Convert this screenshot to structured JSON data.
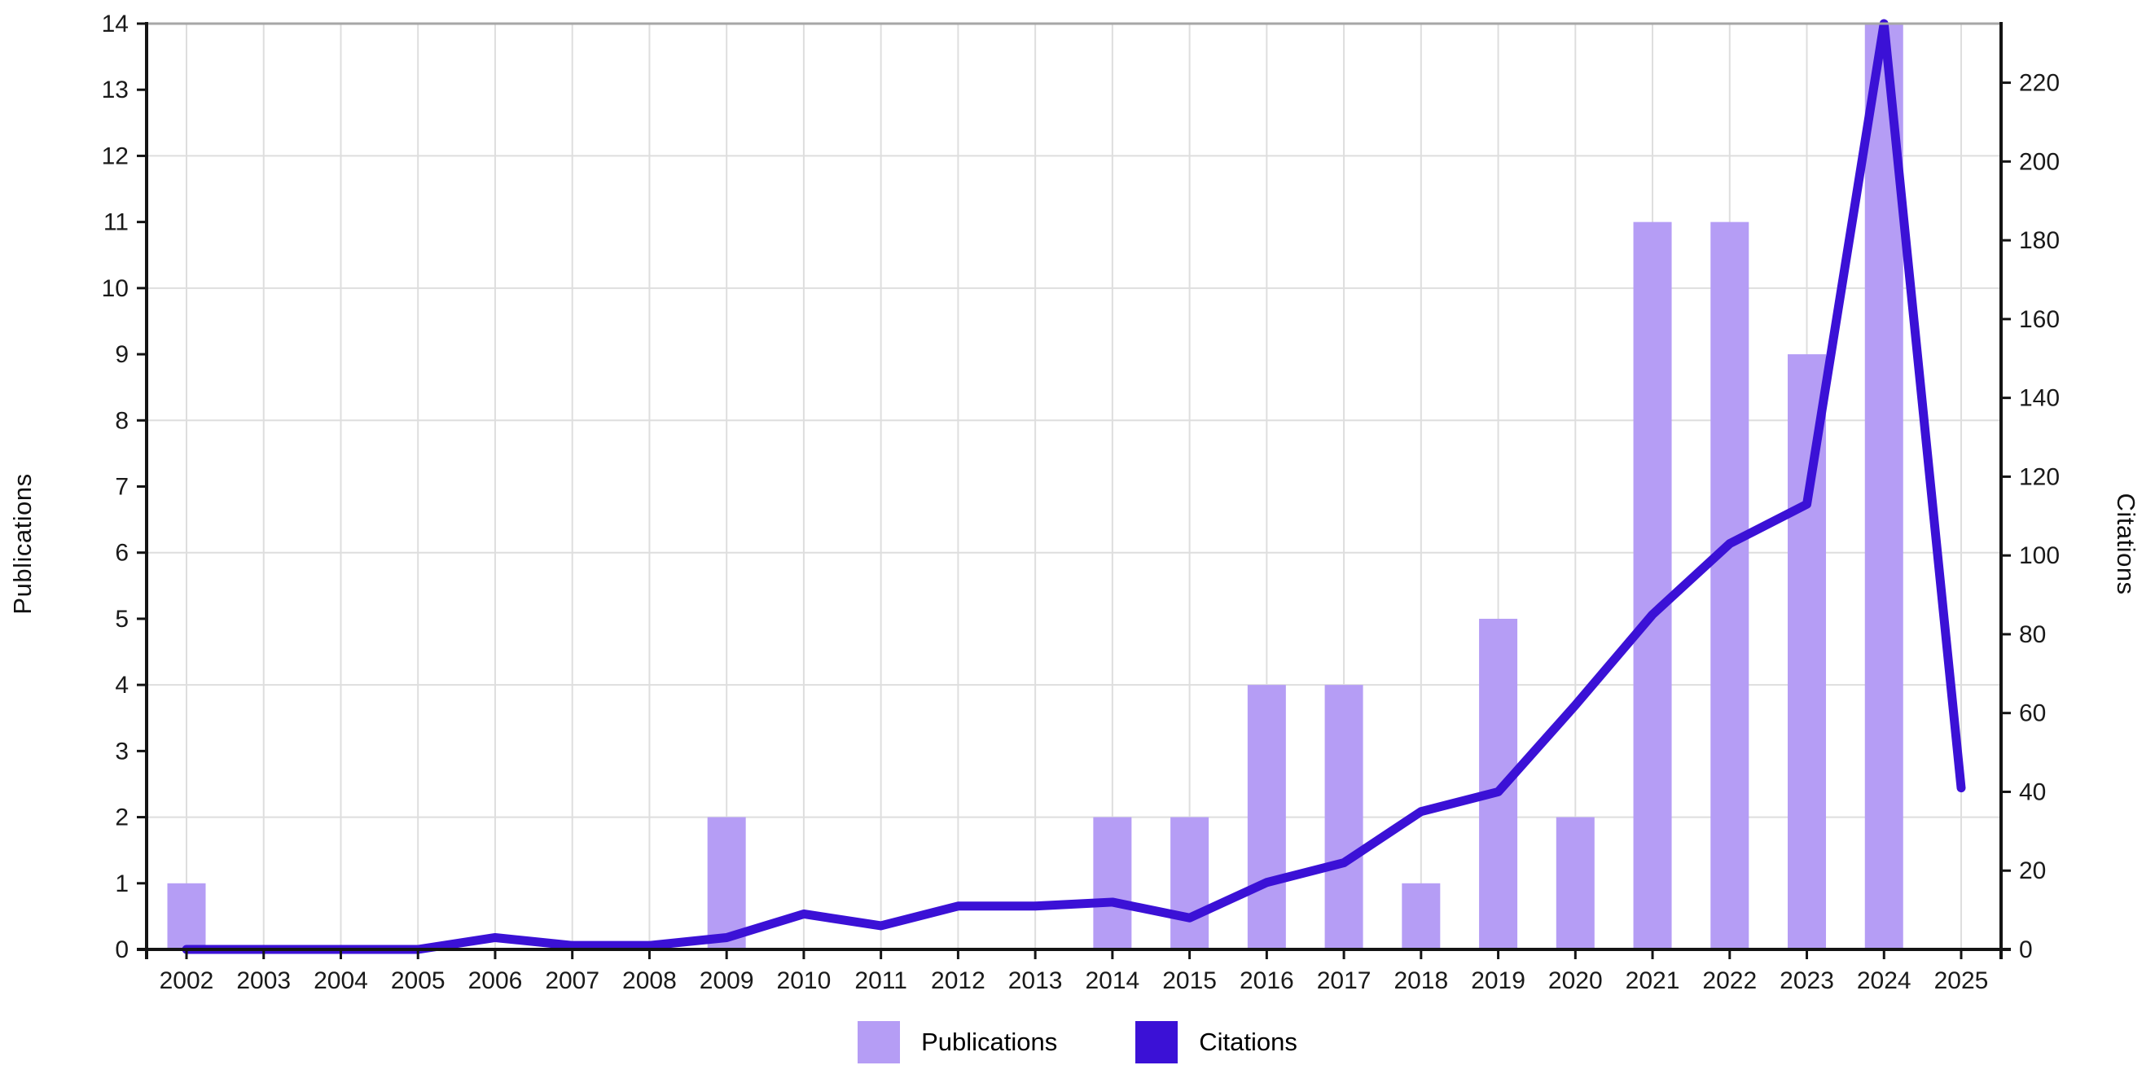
{
  "chart_data": {
    "type": "combo",
    "title": "",
    "categories": [
      2002,
      2003,
      2004,
      2005,
      2006,
      2007,
      2008,
      2009,
      2010,
      2011,
      2012,
      2013,
      2014,
      2015,
      2016,
      2017,
      2018,
      2019,
      2020,
      2021,
      2022,
      2023,
      2024,
      2025
    ],
    "series": [
      {
        "name": "Publications",
        "type": "bar",
        "axis": "left",
        "color": "#b59df5",
        "values": [
          1,
          0,
          0,
          0,
          0,
          0,
          0,
          2,
          0,
          0,
          0,
          0,
          2,
          2,
          4,
          4,
          1,
          5,
          2,
          11,
          11,
          9,
          14,
          0
        ]
      },
      {
        "name": "Citations",
        "type": "line",
        "axis": "right",
        "color": "#3b11d6",
        "values": [
          0,
          0,
          0,
          0,
          3,
          1,
          1,
          3,
          9,
          6,
          11,
          11,
          12,
          8,
          17,
          22,
          35,
          40,
          62,
          85,
          103,
          113,
          235,
          41
        ]
      }
    ],
    "left_axis": {
      "label": "Publications",
      "min": 0,
      "max": 14,
      "ticks": [
        0,
        1,
        2,
        3,
        4,
        5,
        6,
        7,
        8,
        9,
        10,
        11,
        12,
        13,
        14
      ]
    },
    "right_axis": {
      "label": "Citations",
      "min": 0,
      "max": 235,
      "ticks": [
        0,
        20,
        40,
        60,
        80,
        100,
        120,
        140,
        160,
        180,
        200,
        220
      ]
    },
    "grid": {
      "horizontal_at": [
        2,
        4,
        6,
        8,
        10,
        12
      ],
      "vertical_every_category": true
    },
    "legend_position": "bottom"
  },
  "colors": {
    "background": "#ffffff",
    "grid": "#dedede",
    "axis": "#141414",
    "top_border": "#a6a6a6",
    "tick_label": "#1a1a1a"
  }
}
